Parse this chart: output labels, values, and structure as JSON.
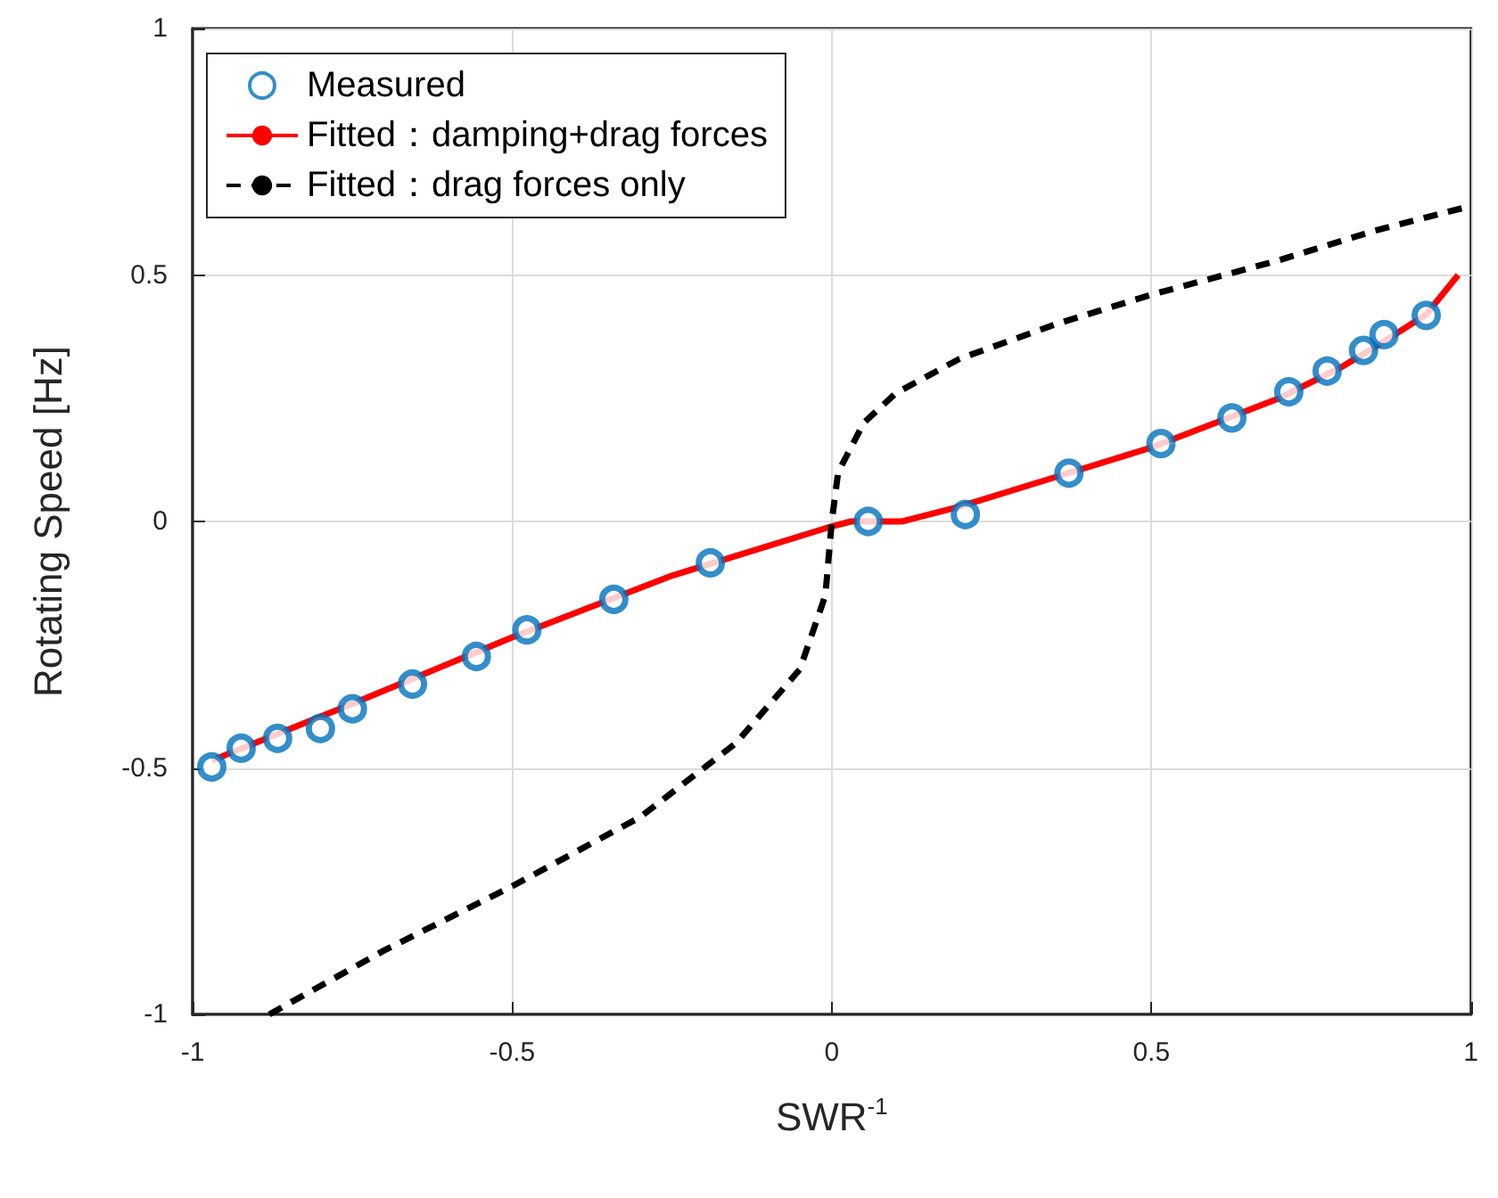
{
  "chart_data": {
    "type": "scatter",
    "xlabel": "SWR$^{-1}$",
    "ylabel": "Rotating Speed [Hz]",
    "xlim": [
      -1,
      1
    ],
    "ylim": [
      -1,
      1
    ],
    "xticks": [
      -1,
      -0.5,
      0,
      0.5,
      1
    ],
    "yticks": [
      -1,
      -0.5,
      0,
      0.5,
      1
    ],
    "grid": true,
    "legend": "top left",
    "series": [
      {
        "name": "Measured",
        "marker": "circle",
        "color": "#0072bd",
        "x": [
          -0.97,
          -0.924,
          -0.867,
          -0.8,
          -0.75,
          -0.656,
          -0.556,
          -0.477,
          -0.341,
          -0.19,
          0.057,
          0.209,
          0.371,
          0.515,
          0.626,
          0.715,
          0.775,
          0.832,
          0.864,
          0.93
        ],
        "values": [
          -0.498,
          -0.46,
          -0.44,
          -0.42,
          -0.38,
          -0.33,
          -0.274,
          -0.22,
          -0.158,
          -0.084,
          0,
          0.014,
          0.098,
          0.158,
          0.21,
          0.263,
          0.305,
          0.347,
          0.379,
          0.418
        ]
      },
      {
        "name": "Fitted：damping+drag forces",
        "type": "line",
        "line_style": "solid",
        "marker": "none",
        "color": "#ff0000",
        "x": [
          -0.97,
          -0.75,
          -0.5,
          -0.25,
          0,
          0.03,
          0.11,
          0.2,
          0.35,
          0.5,
          0.6,
          0.7,
          0.8,
          0.87,
          0.93,
          0.98
        ],
        "values": [
          -0.485,
          -0.37,
          -0.235,
          -0.11,
          -0.01,
          0,
          0,
          0.03,
          0.09,
          0.15,
          0.2,
          0.25,
          0.315,
          0.37,
          0.42,
          0.5
        ]
      },
      {
        "name": "Fitted：drag forces only",
        "type": "line",
        "line_style": "dashed",
        "marker": "none",
        "color": "#000000",
        "x": [
          -0.88,
          -0.7,
          -0.5,
          -0.3,
          -0.15,
          -0.05,
          -0.01,
          0,
          0.01,
          0.05,
          0.1,
          0.2,
          0.35,
          0.5,
          0.7,
          0.85,
          1
        ],
        "values": [
          -1,
          -0.87,
          -0.74,
          -0.6,
          -0.45,
          -0.3,
          -0.15,
          0,
          0.1,
          0.2,
          0.26,
          0.33,
          0.4,
          0.46,
          0.53,
          0.59,
          0.64
        ]
      }
    ]
  }
}
